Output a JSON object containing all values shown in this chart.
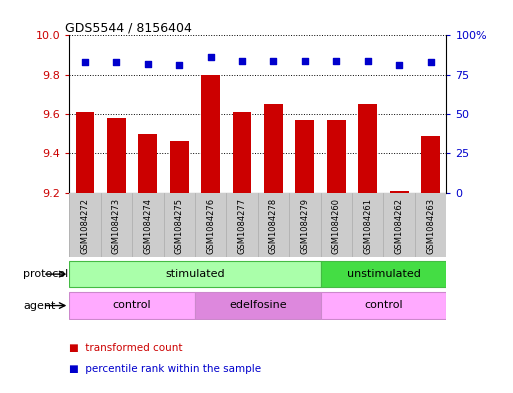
{
  "title": "GDS5544 / 8156404",
  "samples": [
    "GSM1084272",
    "GSM1084273",
    "GSM1084274",
    "GSM1084275",
    "GSM1084276",
    "GSM1084277",
    "GSM1084278",
    "GSM1084279",
    "GSM1084260",
    "GSM1084261",
    "GSM1084262",
    "GSM1084263"
  ],
  "transformed_count": [
    9.61,
    9.58,
    9.5,
    9.46,
    9.8,
    9.61,
    9.65,
    9.57,
    9.57,
    9.65,
    9.21,
    9.49
  ],
  "percentile_rank": [
    83,
    83,
    82,
    81,
    86,
    84,
    84,
    84,
    84,
    84,
    81,
    83
  ],
  "ylim_left": [
    9.2,
    10.0
  ],
  "ylim_right": [
    0,
    100
  ],
  "yticks_left": [
    9.2,
    9.4,
    9.6,
    9.8,
    10.0
  ],
  "yticks_right": [
    0,
    25,
    50,
    75,
    100
  ],
  "bar_color": "#cc0000",
  "dot_color": "#0000cc",
  "protocol_groups": [
    {
      "label": "stimulated",
      "start": 0,
      "end": 8,
      "color": "#aaffaa",
      "edge": "#44bb44"
    },
    {
      "label": "unstimulated",
      "start": 8,
      "end": 12,
      "color": "#44dd44",
      "edge": "#44bb44"
    }
  ],
  "agent_groups": [
    {
      "label": "control",
      "start": 0,
      "end": 4,
      "color": "#ffaaff",
      "edge": "#cc88cc"
    },
    {
      "label": "edelfosine",
      "start": 4,
      "end": 8,
      "color": "#dd88dd",
      "edge": "#cc88cc"
    },
    {
      "label": "control",
      "start": 8,
      "end": 12,
      "color": "#ffaaff",
      "edge": "#cc88cc"
    }
  ],
  "legend_items": [
    {
      "label": "transformed count",
      "color": "#cc0000"
    },
    {
      "label": "percentile rank within the sample",
      "color": "#0000cc"
    }
  ],
  "label_protocol": "protocol",
  "label_agent": "agent",
  "sample_bg": "#cccccc",
  "bg_color": "#ffffff",
  "left_color": "#cc0000",
  "right_color": "#0000cc",
  "spine_color": "#000000",
  "grid_color": "#000000"
}
